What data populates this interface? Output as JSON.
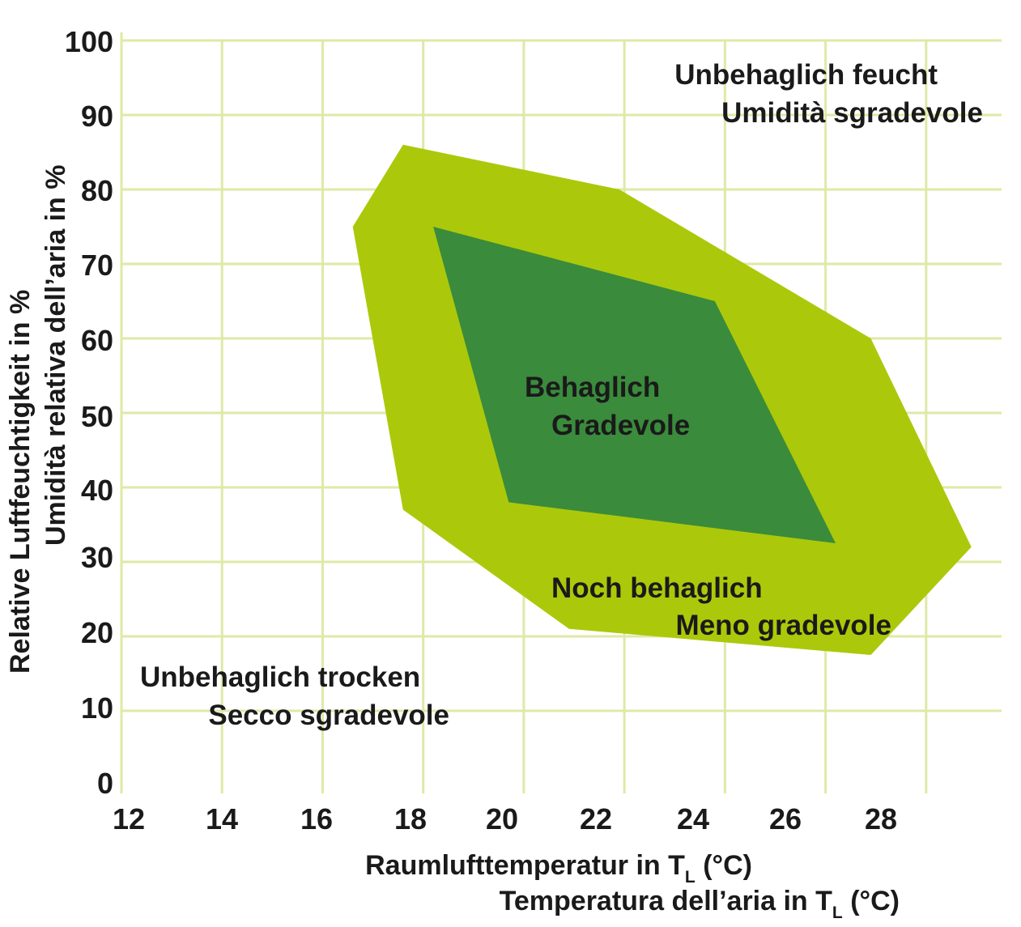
{
  "chart_data": {
    "type": "area",
    "xlabel": [
      "Raumlufttemperatur in T",
      "L",
      " (°C)"
    ],
    "xlabel2": [
      "Temperatura dell’aria in T",
      "L",
      " (°C)"
    ],
    "ylabel": "Relative Luftfeuchtigkeit in %",
    "ylabel2": "Umidità relativa dell’aria in %",
    "xlim": [
      12,
      29.5
    ],
    "ylim": [
      0,
      100
    ],
    "x_ticks": [
      12,
      14,
      16,
      18,
      20,
      22,
      24,
      26,
      28
    ],
    "y_ticks": [
      0,
      10,
      20,
      30,
      40,
      50,
      60,
      70,
      80,
      90,
      100
    ],
    "grid": true,
    "colors": {
      "outer": "#abc90a",
      "inner": "#3a8b3c",
      "grid": "#dfe9a6",
      "text": "#1a1a1a"
    },
    "regions": [
      {
        "name": "Noch behaglich / Meno gradevole",
        "color": "#abc90a",
        "points": [
          [
            17.6,
            86
          ],
          [
            21.9,
            80
          ],
          [
            26.9,
            60
          ],
          [
            28.9,
            32
          ],
          [
            26.9,
            17.5
          ],
          [
            20.9,
            21
          ],
          [
            17.6,
            37
          ],
          [
            16.6,
            75
          ]
        ]
      },
      {
        "name": "Behaglich / Gradevole",
        "color": "#3a8b3c",
        "points": [
          [
            18.2,
            75
          ],
          [
            23.8,
            65
          ],
          [
            26.2,
            32.5
          ],
          [
            19.7,
            38
          ]
        ]
      }
    ],
    "annotations": [
      {
        "id": "humid",
        "lines": [
          "Unbehaglich feucht",
          "Umidità sgradevole"
        ]
      },
      {
        "id": "comfortable",
        "lines": [
          "Behaglich",
          "Gradevole"
        ]
      },
      {
        "id": "still-comfortable",
        "lines": [
          "Noch behaglich",
          "Meno gradevole"
        ]
      },
      {
        "id": "dry",
        "lines": [
          "Unbehaglich trocken",
          "Secco sgradevole"
        ]
      }
    ]
  }
}
